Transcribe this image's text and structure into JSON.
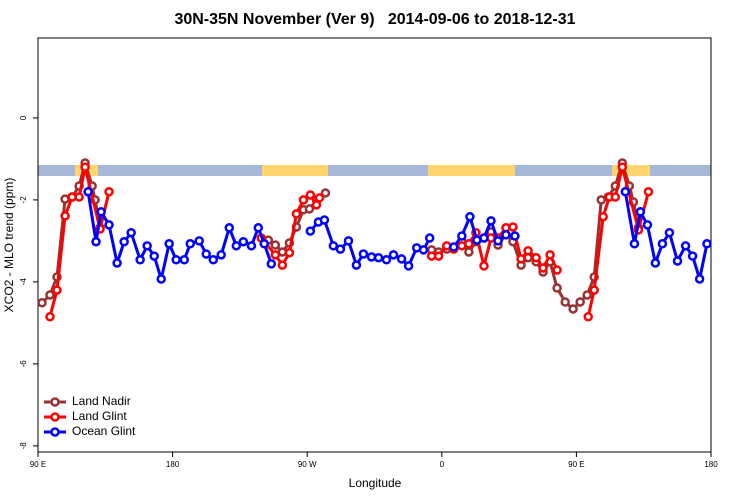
{
  "chart_data": {
    "type": "line",
    "title": "30N-35N November (Ver 9)   2014-09-06 to 2018-12-31",
    "x_label": "Longitude",
    "y_label": "XCO2 - MLO trend (ppm)",
    "xlim": [
      90,
      540
    ],
    "ylim": [
      -8.15,
      1.95
    ],
    "xticks": [
      {
        "value": 90,
        "label": "90 E"
      },
      {
        "value": 180,
        "label": "180"
      },
      {
        "value": 270,
        "label": "90 W"
      },
      {
        "value": 360,
        "label": "0"
      },
      {
        "value": 450,
        "label": "90 E"
      },
      {
        "value": 540,
        "label": "180"
      }
    ],
    "yticks": [
      0,
      -2,
      -4,
      -6,
      -8
    ],
    "legend": "lower left",
    "series": [
      {
        "name": "Land Nadir",
        "color": "#993333",
        "x": [
          92.7,
          98.0,
          102.7,
          108.1,
          112.8,
          117.5,
          121.5,
          126.2,
          128.2,
          131.5,
          null,
          244.0,
          248.7,
          253.4,
          258.1,
          262.8,
          267.5,
          271.5,
          276.2,
          282.2,
          null,
          353.2,
          357.9,
          363.3,
          368.0,
          373.4,
          378.1,
          382.8,
          388.2,
          392.9,
          397.6,
          402.9,
          407.6,
          413.0,
          417.7,
          423.1,
          427.7,
          432.4,
          437.1,
          442.5,
          447.8,
          452.5,
          457.2,
          461.9,
          466.6,
          471.3,
          476.0,
          480.7,
          485.4,
          488.1,
          491.5
        ],
        "values": [
          -4.51,
          -4.32,
          -3.88,
          -1.98,
          -1.93,
          -1.66,
          -1.1,
          -1.66,
          -2.0,
          -2.68,
          null,
          -2.98,
          -3.1,
          -3.27,
          -3.05,
          -2.66,
          -2.24,
          -2.22,
          -2.0,
          -1.83,
          null,
          -3.22,
          -3.27,
          -3.2,
          -3.15,
          -3.0,
          -3.27,
          -3.02,
          -2.93,
          -2.78,
          -3.1,
          -2.85,
          -3.02,
          -3.59,
          -3.41,
          -3.51,
          -3.76,
          -3.51,
          -4.15,
          -4.49,
          -4.66,
          -4.49,
          -4.32,
          -3.88,
          -2.0,
          -1.93,
          -1.66,
          -1.1,
          -1.66,
          -2.05,
          -2.68
        ]
      },
      {
        "name": "Land Glint",
        "color": "#ff0000",
        "x": [
          98.0,
          102.7,
          108.1,
          112.8,
          117.5,
          121.5,
          131.5,
          137.5,
          null,
          239.3,
          248.7,
          253.4,
          258.1,
          262.8,
          267.5,
          272.1,
          276.2,
          278.2,
          null,
          353.2,
          357.9,
          363.3,
          368.0,
          373.4,
          378.1,
          382.8,
          388.2,
          392.9,
          397.6,
          402.9,
          407.6,
          413.0,
          417.7,
          423.1,
          427.7,
          432.4,
          437.1,
          null,
          457.9,
          461.9,
          467.9,
          472.0,
          476.0,
          480.7,
          491.5,
          498.2
        ],
        "values": [
          -4.85,
          -4.2,
          -2.39,
          -1.93,
          -1.93,
          -1.2,
          -2.71,
          -1.8,
          null,
          -2.93,
          -3.34,
          -3.59,
          -3.29,
          -2.34,
          -2.0,
          -1.88,
          -2.12,
          -1.95,
          null,
          -3.37,
          -3.37,
          -3.12,
          -3.2,
          -3.12,
          -3.07,
          -2.8,
          -3.61,
          -2.93,
          -2.93,
          -2.68,
          -2.66,
          -3.44,
          -3.24,
          -3.41,
          -3.66,
          -3.34,
          -3.71,
          null,
          -4.85,
          -4.2,
          -2.41,
          -1.93,
          -1.93,
          -1.2,
          -2.73,
          -1.8
        ]
      },
      {
        "name": "Ocean Glint",
        "color": "#0000ff",
        "x": [
          123.5,
          128.8,
          132.2,
          137.5,
          142.9,
          147.6,
          152.3,
          158.3,
          163.0,
          167.7,
          172.4,
          177.7,
          182.4,
          187.8,
          191.8,
          197.8,
          202.5,
          207.2,
          212.5,
          217.9,
          222.6,
          227.3,
          232.7,
          237.3,
          241.3,
          246.0,
          null,
          272.1,
          277.5,
          281.5,
          287.5,
          292.2,
          297.6,
          302.9,
          307.6,
          313.0,
          317.7,
          323.0,
          327.7,
          333.1,
          337.8,
          343.2,
          347.8,
          351.9,
          null,
          368.0,
          373.4,
          378.8,
          383.5,
          388.2,
          392.9,
          397.6,
          402.9,
          408.9,
          null,
          482.7,
          488.8,
          492.8,
          497.5,
          502.8,
          507.5,
          512.2,
          517.6,
          523.0,
          527.7,
          532.4,
          537.3
        ],
        "values": [
          -1.8,
          -3.02,
          -2.29,
          -2.61,
          -3.54,
          -3.02,
          -2.8,
          -3.46,
          -3.12,
          -3.37,
          -3.93,
          -3.07,
          -3.46,
          -3.46,
          -3.07,
          -3.0,
          -3.32,
          -3.46,
          -3.34,
          -2.68,
          -3.12,
          -3.02,
          -3.12,
          -2.68,
          -3.07,
          -3.56,
          null,
          -2.76,
          -2.54,
          -2.49,
          -3.12,
          -3.2,
          -3.0,
          -3.59,
          -3.32,
          -3.39,
          -3.41,
          -3.46,
          -3.34,
          -3.44,
          -3.61,
          -3.17,
          -3.22,
          -2.93,
          null,
          -3.15,
          -2.88,
          -2.41,
          -2.98,
          -2.93,
          -2.51,
          -3.0,
          -2.85,
          -2.88,
          null,
          -1.8,
          -3.07,
          -2.29,
          -2.61,
          -3.54,
          -3.07,
          -2.8,
          -3.49,
          -3.12,
          -3.37,
          -3.93,
          -3.07
        ]
      }
    ]
  }
}
